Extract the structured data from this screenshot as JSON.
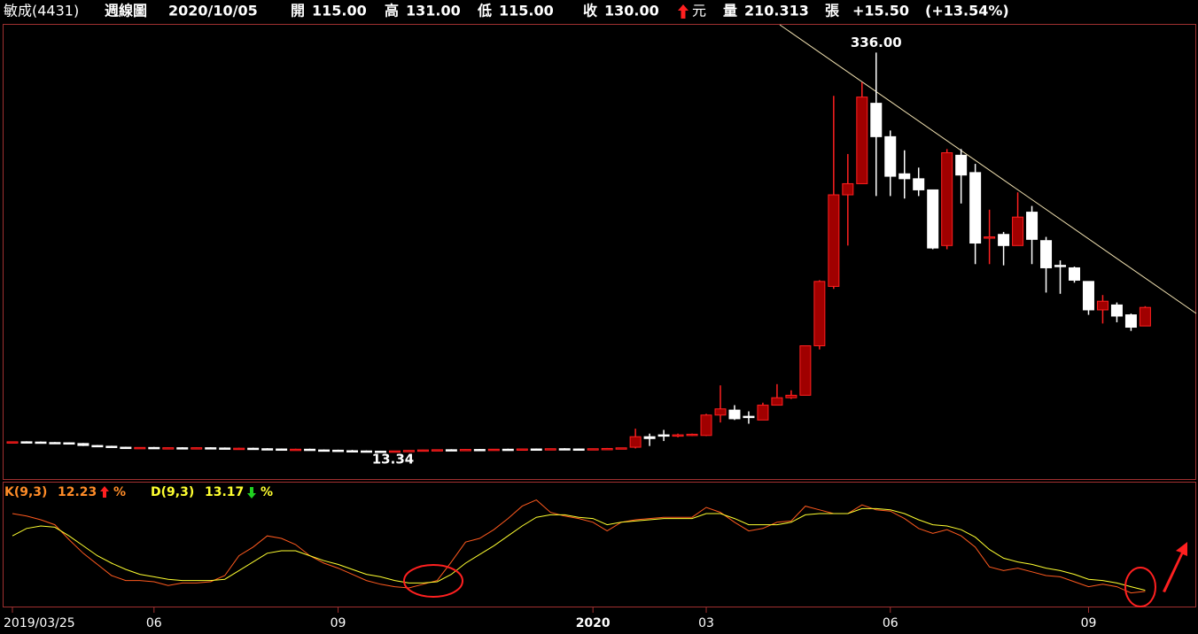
{
  "header": {
    "name": "敏成(4431)",
    "period": "週線圖",
    "date": "2020/10/05",
    "open_label": "開",
    "open": "115.00",
    "high_label": "高",
    "high": "131.00",
    "low_label": "低",
    "low": "115.00",
    "close_label": "收",
    "close": "130.00",
    "currency": "元",
    "volume_label": "量",
    "volume": "210.313",
    "volume_unit": "張",
    "change": "+15.50",
    "change_pct": "(+13.54%)"
  },
  "chart_data": [
    {
      "type": "candlestick",
      "up_color": "#a00000",
      "up_edge": "#ff2020",
      "down_color": "#ffffff",
      "ylim": [
        -8,
        357
      ],
      "annotations": [
        {
          "value": 336,
          "label": "336.00",
          "at": "high"
        },
        {
          "value": 13.34,
          "label": "13.34",
          "at": "low"
        }
      ],
      "categories": [
        "2019/03/25",
        null,
        null,
        null,
        null,
        null,
        null,
        null,
        null,
        null,
        "06",
        null,
        null,
        null,
        null,
        null,
        null,
        null,
        null,
        null,
        null,
        null,
        null,
        "09",
        null,
        null,
        null,
        null,
        null,
        null,
        null,
        null,
        null,
        null,
        null,
        null,
        null,
        null,
        null,
        null,
        null,
        "2020",
        null,
        null,
        null,
        null,
        null,
        null,
        null,
        "03",
        null,
        null,
        null,
        null,
        null,
        null,
        null,
        null,
        null,
        null,
        null,
        null,
        "06",
        null,
        null,
        null,
        null,
        null,
        null,
        null,
        null,
        null,
        null,
        null,
        null,
        null,
        "09",
        null,
        null,
        null,
        null
      ],
      "open": [
        21.0,
        21.4,
        21.2,
        20.8,
        20.6,
        20.0,
        18.4,
        17.8,
        17.0,
        16.6,
        16.8,
        16.4,
        16.6,
        16.2,
        16.6,
        16.4,
        16.0,
        16.2,
        15.8,
        15.6,
        15.2,
        15.4,
        14.8,
        14.6,
        14.2,
        14.0,
        13.8,
        13.6,
        14.0,
        14.4,
        14.8,
        15.0,
        14.8,
        15.2,
        15.0,
        15.4,
        15.2,
        15.6,
        15.4,
        15.8,
        15.6,
        15.4,
        15.8,
        16.0,
        17,
        25.5,
        27,
        26,
        26.5,
        26.5,
        43,
        47,
        42,
        39,
        51,
        57,
        59,
        99,
        147,
        221,
        230,
        295,
        268,
        238,
        234,
        225,
        180,
        253,
        239,
        186,
        189,
        180,
        207,
        184,
        164,
        162,
        151,
        128,
        132,
        124,
        115
      ],
      "high": [
        21.6,
        21.8,
        21.6,
        21.2,
        21.0,
        20.4,
        18.8,
        18.2,
        17.4,
        17.0,
        17.2,
        16.8,
        17.0,
        16.8,
        17.0,
        16.8,
        16.6,
        16.6,
        16.2,
        16.0,
        15.8,
        15.8,
        15.2,
        15.0,
        14.8,
        14.4,
        14.2,
        14.2,
        14.6,
        15.0,
        15.2,
        15.4,
        15.4,
        15.6,
        15.6,
        15.8,
        15.8,
        16.0,
        16.0,
        16.2,
        16.0,
        16.0,
        16.4,
        16.6,
        32,
        28,
        31,
        28,
        28,
        44,
        67,
        51,
        46,
        53,
        68,
        63,
        99,
        152,
        301,
        254,
        312,
        336,
        273,
        257,
        243,
        225,
        258,
        258,
        246,
        209,
        191,
        223,
        212,
        187,
        168,
        163,
        151,
        140,
        134,
        125,
        131
      ],
      "low": [
        20.6,
        20.8,
        20.4,
        20.2,
        19.8,
        18.0,
        17.6,
        16.8,
        16.4,
        16.0,
        16.2,
        15.8,
        16.0,
        15.8,
        16.0,
        15.8,
        15.6,
        15.6,
        15.2,
        15.0,
        14.8,
        14.6,
        14.2,
        14.0,
        13.8,
        13.5,
        13.34,
        13.4,
        13.8,
        14.0,
        14.4,
        14.6,
        14.4,
        14.8,
        14.8,
        15.0,
        15.0,
        15.2,
        15.2,
        15.4,
        15.2,
        15.2,
        15.4,
        15.6,
        16,
        18,
        22,
        25,
        26,
        26,
        37,
        39,
        36,
        39,
        51,
        56,
        59,
        96,
        145,
        180,
        230,
        220,
        220,
        218,
        220,
        177,
        177,
        214,
        165,
        165,
        164,
        180,
        165,
        142,
        141,
        150,
        124,
        117,
        118,
        111,
        115
      ],
      "close": [
        21.4,
        21.2,
        20.8,
        20.6,
        20.0,
        18.4,
        17.8,
        17.0,
        16.6,
        16.8,
        16.4,
        16.6,
        16.2,
        16.6,
        16.4,
        16.0,
        16.2,
        15.8,
        15.6,
        15.2,
        15.4,
        14.8,
        14.6,
        14.2,
        14.0,
        13.8,
        13.6,
        14.0,
        14.4,
        14.8,
        15.0,
        14.8,
        15.2,
        15.0,
        15.4,
        15.2,
        15.6,
        15.4,
        15.8,
        15.6,
        15.4,
        15.8,
        16.0,
        16.5,
        25.5,
        24,
        26.5,
        27,
        27.5,
        43,
        48,
        40,
        41,
        51,
        57,
        59,
        99,
        151,
        221,
        230,
        300,
        268,
        236,
        234,
        225,
        178,
        255,
        237,
        182,
        187,
        180,
        203,
        185,
        162,
        163,
        152,
        128,
        135,
        123,
        114,
        130
      ]
    },
    {
      "type": "line",
      "ylim": [
        0,
        100
      ],
      "series": [
        {
          "name": "K(9,3)",
          "color": "#ff5a1e",
          "label_color": "#ff8c28",
          "last_value_label": "12.23",
          "unit": "%",
          "values": [
            75,
            73,
            70,
            66,
            54,
            43,
            34,
            25,
            21,
            21,
            20,
            17,
            19,
            19,
            20,
            25,
            41,
            48,
            57,
            55,
            50,
            41,
            35,
            31,
            26,
            21,
            18,
            16,
            15,
            18,
            21,
            36,
            52,
            55,
            62,
            71,
            81,
            86,
            76,
            73,
            71,
            68,
            61,
            68,
            70,
            71,
            72,
            72,
            72,
            80,
            76,
            68,
            61,
            63,
            68,
            69,
            81,
            78,
            75,
            75,
            82,
            78,
            77,
            71,
            63,
            59,
            62,
            57,
            48,
            32,
            29,
            31,
            28,
            25,
            24,
            20,
            16,
            18,
            16,
            11,
            12.23
          ]
        },
        {
          "name": "D(9,3)",
          "color": "#ffff30",
          "label_color": "#ffff30",
          "last_value_label": "13.17",
          "unit": "%",
          "values": [
            57,
            63,
            65,
            64,
            57,
            49,
            41,
            35,
            30,
            26,
            24,
            22,
            21,
            21,
            21,
            22,
            29,
            36,
            43,
            45,
            45,
            41,
            37,
            34,
            30,
            26,
            24,
            21,
            19,
            19,
            20,
            26,
            35,
            42,
            49,
            57,
            65,
            72,
            74,
            74,
            72,
            71,
            66,
            68,
            69,
            70,
            71,
            71,
            71,
            75,
            75,
            71,
            66,
            66,
            66,
            68,
            74,
            75,
            75,
            75,
            79,
            79,
            78,
            75,
            70,
            66,
            65,
            62,
            56,
            46,
            39,
            36,
            34,
            31,
            29,
            26,
            22,
            21,
            19,
            16,
            13.17
          ]
        }
      ]
    }
  ]
}
